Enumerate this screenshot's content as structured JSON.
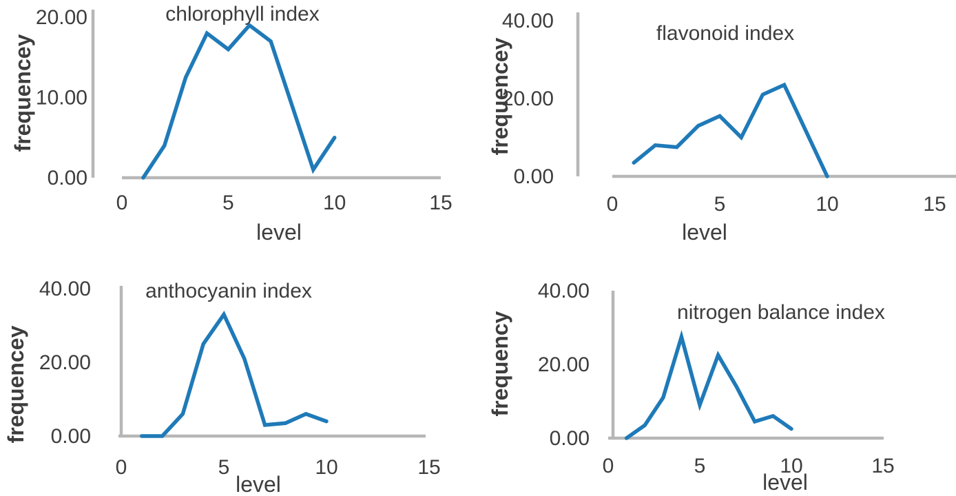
{
  "colors": {
    "line": "#1f7ab8",
    "axis": "#b7b7b7",
    "text": "#3d3d3d",
    "background": "#ffffff"
  },
  "chart_data": [
    {
      "type": "line",
      "title": "chlorophyll index",
      "xlabel": "level",
      "ylabel": "frequencey",
      "x": [
        1,
        2,
        3,
        4,
        5,
        6,
        7,
        8,
        9,
        10
      ],
      "values": [
        0,
        4,
        12.5,
        18,
        16,
        19,
        17,
        9,
        1,
        5
      ],
      "xlim": [
        0,
        15
      ],
      "ylim": [
        0,
        20
      ],
      "x_tick_values": [
        0,
        5,
        10,
        15
      ],
      "x_tick_labels": [
        "0",
        "5",
        "10",
        "15"
      ],
      "y_tick_values": [
        0,
        10,
        20
      ],
      "y_tick_labels": [
        "0.00",
        "10.00",
        "20.00"
      ],
      "grid": false,
      "legend": "none"
    },
    {
      "type": "line",
      "title": "flavonoid index",
      "xlabel": "level",
      "ylabel": "frequencey",
      "x": [
        1,
        2,
        3,
        4,
        5,
        6,
        7,
        8,
        9,
        10
      ],
      "values": [
        3.5,
        8,
        7.5,
        13,
        15.5,
        10,
        21,
        23.5,
        11.75,
        0
      ],
      "xlim": [
        0,
        15
      ],
      "ylim": [
        0,
        40
      ],
      "x_tick_values": [
        0,
        5,
        10,
        15
      ],
      "x_tick_labels": [
        "0",
        "5",
        "10",
        "15"
      ],
      "y_tick_values": [
        0,
        20,
        40
      ],
      "y_tick_labels": [
        "0.00",
        "20.00",
        "40.00"
      ],
      "grid": false,
      "legend": "none"
    },
    {
      "type": "line",
      "title": "anthocyanin index",
      "xlabel": "level",
      "ylabel": "frequencey",
      "x": [
        1,
        2,
        3,
        4,
        5,
        6,
        7,
        8,
        9,
        10
      ],
      "values": [
        0,
        0,
        6,
        25,
        33,
        21,
        3,
        3.5,
        6,
        4
      ],
      "xlim": [
        0,
        15
      ],
      "ylim": [
        0,
        40
      ],
      "x_tick_values": [
        0,
        5,
        10,
        15
      ],
      "x_tick_labels": [
        "0",
        "5",
        "10",
        "15"
      ],
      "y_tick_values": [
        0,
        20,
        40
      ],
      "y_tick_labels": [
        "0.00",
        "20.00",
        "40.00"
      ],
      "grid": false,
      "legend": "none"
    },
    {
      "type": "line",
      "title": "nitrogen balance index",
      "xlabel": "level",
      "ylabel": "frequency",
      "x": [
        1,
        2,
        3,
        4,
        5,
        6,
        7,
        8,
        9,
        10
      ],
      "values": [
        0,
        3.5,
        11,
        27.5,
        9,
        22.5,
        14,
        4.5,
        6,
        2.5
      ],
      "xlim": [
        0,
        15
      ],
      "ylim": [
        0,
        40
      ],
      "x_tick_values": [
        0,
        5,
        10,
        15
      ],
      "x_tick_labels": [
        "0",
        "5",
        "10",
        "15"
      ],
      "y_tick_values": [
        0,
        20,
        40
      ],
      "y_tick_labels": [
        "0.00",
        "20.00",
        "40.00"
      ],
      "grid": false,
      "legend": "none"
    }
  ]
}
